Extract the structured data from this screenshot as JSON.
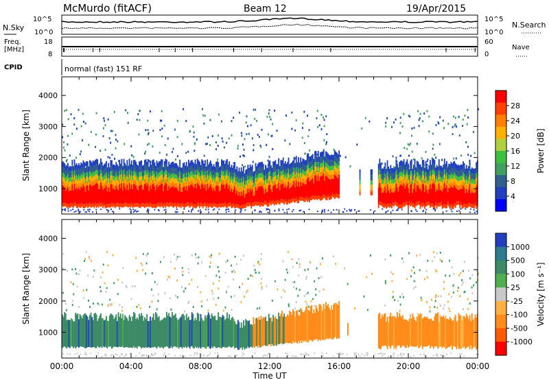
{
  "header": {
    "station": "McMurdo (fitACF)",
    "beam": "Beam 12",
    "date": "19/Apr/2015"
  },
  "top_panels": {
    "nsky_label": "N.Sky",
    "nsearch_label": "N.Search",
    "noise_ticks_left": [
      "10^5",
      "10^0"
    ],
    "noise_ticks_right": [
      "10^5",
      "10^0"
    ],
    "freq_label": "Freq.",
    "freq_unit": "[MHz]",
    "freq_ticks": [
      "18",
      "8"
    ],
    "nave_label": "Nave",
    "nave_ticks": [
      "60",
      "0"
    ],
    "cpid_label": "CPID",
    "cpid_value": "normal (fast) 151 RF"
  },
  "chart_data": [
    {
      "type": "heatmap",
      "name": "power",
      "ylabel": "Slant Range [km]",
      "xlabel": "Time UT",
      "x_ticks": [
        "00:00",
        "04:00",
        "08:00",
        "12:00",
        "16:00",
        "20:00",
        "00:00"
      ],
      "xlim_hours": [
        0,
        24
      ],
      "ylim": [
        180,
        4600
      ],
      "y_ticks": [
        1000,
        2000,
        3000,
        4000
      ],
      "colorbar": {
        "label": "Power [dB]",
        "ticks": [
          "28",
          "24",
          "20",
          "16",
          "12",
          "8",
          "4"
        ],
        "colors": [
          "#ff0000",
          "#ff4000",
          "#ff8000",
          "#ffb000",
          "#b0d040",
          "#40c040",
          "#40a060",
          "#30608c",
          "#2040c0",
          "#0000ff"
        ]
      }
    },
    {
      "type": "heatmap",
      "name": "velocity",
      "ylabel": "Slant Range [km]",
      "xlabel": "Time UT",
      "x_ticks": [
        "00:00",
        "04:00",
        "08:00",
        "12:00",
        "16:00",
        "20:00",
        "00:00"
      ],
      "xlim_hours": [
        0,
        24
      ],
      "ylim": [
        180,
        4600
      ],
      "y_ticks": [
        1000,
        2000,
        3000,
        4000
      ],
      "colorbar": {
        "label": "Velocity [m s⁻¹]",
        "ticks": [
          "1000",
          "500",
          "100",
          "25",
          "-25",
          "-100",
          "-500",
          "-1000"
        ],
        "colors": [
          "#2040c0",
          "#2e7a90",
          "#3c8a66",
          "#50b050",
          "#c8c8c8",
          "#ffb040",
          "#ff8c1a",
          "#ff5a00",
          "#ff0000"
        ]
      }
    }
  ]
}
